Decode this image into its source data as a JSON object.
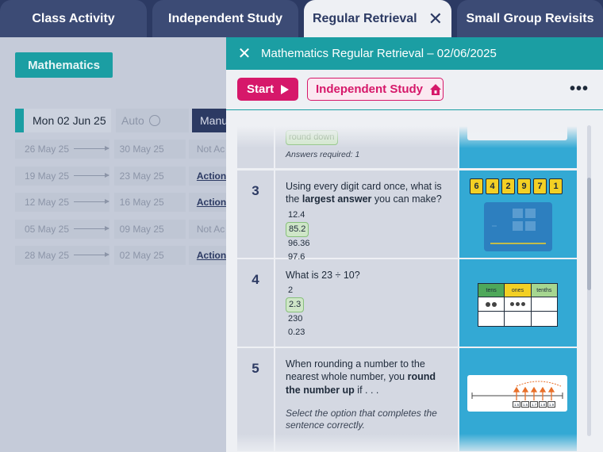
{
  "tabs": [
    {
      "label": "Class Activity",
      "active": false
    },
    {
      "label": "Independent Study",
      "active": false
    },
    {
      "label": "Regular Retrieval",
      "active": true
    },
    {
      "label": "Small Group Revisits",
      "active": false
    }
  ],
  "tab_close_glyph": "✕",
  "background": {
    "subject": "Mathematics",
    "current_week": "Mon 02 Jun 25",
    "auto_label": "Auto",
    "manual_label": "Manu",
    "weeks": [
      {
        "from": "26 May 25",
        "to": "30 May 25",
        "status": "Not Ac",
        "action": false
      },
      {
        "from": "19 May 25",
        "to": "23 May 25",
        "status": "Action",
        "action": true
      },
      {
        "from": "12 May 25",
        "to": "16 May 25",
        "status": "Action",
        "action": true
      },
      {
        "from": "05 May 25",
        "to": "09 May 25",
        "status": "Not Ac",
        "action": false
      },
      {
        "from": "28 May 25",
        "to": "02 May 25",
        "status": "Action",
        "action": true
      }
    ]
  },
  "panel": {
    "title": "Mathematics Regular Retrieval – 02/06/2025",
    "close_glyph": "✕",
    "start_label": "Start",
    "independent_label": "Independent Study",
    "more_glyph": "•••",
    "colors": {
      "teal": "#1b9ea3",
      "pink": "#d6186a",
      "navy": "#2c3a63",
      "image_blue": "#33a9d4"
    },
    "questions": [
      {
        "number": "",
        "partial_option": "round down",
        "note": "Answers required: 1"
      },
      {
        "number": "3",
        "text_before": "Using every digit card once, what is the ",
        "text_bold": "largest answer",
        "text_after": " you can make?",
        "options": [
          "12.4",
          "85.2",
          "96.36",
          "97.6"
        ],
        "correct": 1,
        "digit_cards": [
          "6",
          "4",
          "2",
          "9",
          "7",
          "1"
        ]
      },
      {
        "number": "4",
        "text": "What is 23 ÷ 10?",
        "options": [
          "2",
          "2.3",
          "230",
          "0.23"
        ],
        "correct": 1,
        "place_value_headers": [
          "tens",
          "ones",
          "tenths"
        ]
      },
      {
        "number": "5",
        "text_before": "When rounding a number to the nearest whole number, you ",
        "text_bold": "round the number up",
        "text_after": " if . . .",
        "instruction": "Select the option that completes the sentence correctly.",
        "number_line_labels": [
          "1.5",
          "1.6",
          "1.7",
          "1.8",
          "1.9"
        ]
      }
    ]
  }
}
